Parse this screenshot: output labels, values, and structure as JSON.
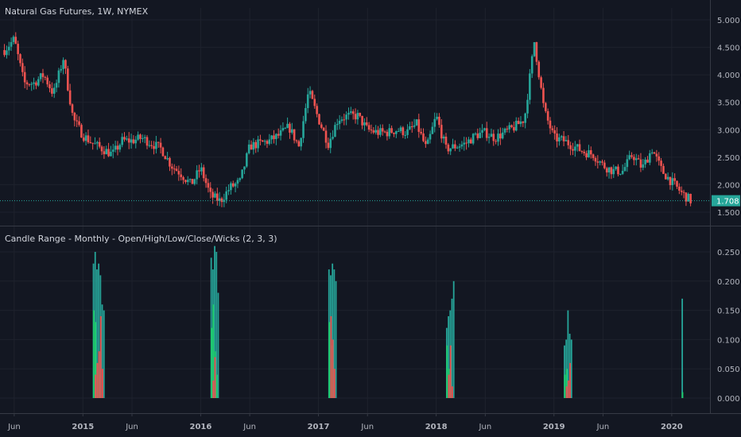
{
  "colors": {
    "background": "#131722",
    "grid": "#1e222d",
    "separator": "#363a45",
    "up": "#26a69a",
    "down": "#ef5350",
    "text": "#b2b5be",
    "last_price_line": "#26a69a",
    "osc_bright_green": "#1ecf6c",
    "osc_teal": "#26a69a",
    "osc_red": "#ef5350"
  },
  "chart_data": [
    {
      "type": "candlestick",
      "title": "Natural Gas Futures, 1W, NYMEX",
      "y_ticks": [
        "5.000",
        "4.500",
        "4.000",
        "3.500",
        "3.000",
        "2.500",
        "2.000",
        "1.500"
      ],
      "ylim": [
        1.5,
        5.0
      ],
      "last_price": "1.708",
      "x_ticks": [
        "Jun",
        "2015",
        "Jun",
        "2016",
        "Jun",
        "2017",
        "Jun",
        "2018",
        "Jun",
        "2019",
        "Jun",
        "2020"
      ],
      "x_tick_dates": [
        "2014-06",
        "2015-01",
        "2015-06",
        "2016-01",
        "2016-06",
        "2017-01",
        "2017-06",
        "2018-01",
        "2018-06",
        "2019-01",
        "2019-06",
        "2020-01"
      ],
      "x_range": [
        "2014-05",
        "2020-05"
      ],
      "close_path": [
        [
          "2014-05",
          4.45
        ],
        [
          "2014-06",
          4.65
        ],
        [
          "2014-07",
          3.85
        ],
        [
          "2014-08",
          3.85
        ],
        [
          "2014-09",
          4.0
        ],
        [
          "2014-10",
          3.65
        ],
        [
          "2014-11",
          4.3
        ],
        [
          "2014-12",
          3.2
        ],
        [
          "2015-01",
          2.9
        ],
        [
          "2015-02",
          2.75
        ],
        [
          "2015-03",
          2.65
        ],
        [
          "2015-04",
          2.55
        ],
        [
          "2015-05",
          2.8
        ],
        [
          "2015-06",
          2.8
        ],
        [
          "2015-07",
          2.85
        ],
        [
          "2015-08",
          2.75
        ],
        [
          "2015-09",
          2.65
        ],
        [
          "2015-10",
          2.35
        ],
        [
          "2015-11",
          2.2
        ],
        [
          "2015-12",
          2.0
        ],
        [
          "2016-01",
          2.3
        ],
        [
          "2016-02",
          1.8
        ],
        [
          "2016-03",
          1.7
        ],
        [
          "2016-04",
          1.95
        ],
        [
          "2016-05",
          2.05
        ],
        [
          "2016-06",
          2.7
        ],
        [
          "2016-07",
          2.75
        ],
        [
          "2016-08",
          2.8
        ],
        [
          "2016-09",
          2.9
        ],
        [
          "2016-10",
          3.05
        ],
        [
          "2016-11",
          2.7
        ],
        [
          "2016-12",
          3.7
        ],
        [
          "2017-01",
          3.2
        ],
        [
          "2017-02",
          2.75
        ],
        [
          "2017-03",
          3.2
        ],
        [
          "2017-04",
          3.25
        ],
        [
          "2017-05",
          3.25
        ],
        [
          "2017-06",
          3.0
        ],
        [
          "2017-07",
          2.95
        ],
        [
          "2017-08",
          2.95
        ],
        [
          "2017-09",
          3.0
        ],
        [
          "2017-10",
          2.95
        ],
        [
          "2017-11",
          3.1
        ],
        [
          "2017-12",
          2.65
        ],
        [
          "2018-01",
          3.25
        ],
        [
          "2018-02",
          2.65
        ],
        [
          "2018-03",
          2.7
        ],
        [
          "2018-04",
          2.75
        ],
        [
          "2018-05",
          2.9
        ],
        [
          "2018-06",
          2.95
        ],
        [
          "2018-07",
          2.85
        ],
        [
          "2018-08",
          2.95
        ],
        [
          "2018-09",
          3.05
        ],
        [
          "2018-10",
          3.2
        ],
        [
          "2018-11",
          4.6
        ],
        [
          "2018-12",
          3.35
        ],
        [
          "2019-01",
          2.85
        ],
        [
          "2019-02",
          2.8
        ],
        [
          "2019-03",
          2.7
        ],
        [
          "2019-04",
          2.6
        ],
        [
          "2019-05",
          2.55
        ],
        [
          "2019-06",
          2.35
        ],
        [
          "2019-07",
          2.25
        ],
        [
          "2019-08",
          2.25
        ],
        [
          "2019-09",
          2.55
        ],
        [
          "2019-10",
          2.3
        ],
        [
          "2019-11",
          2.65
        ],
        [
          "2019-12",
          2.25
        ],
        [
          "2020-01",
          2.05
        ],
        [
          "2020-02",
          1.85
        ],
        [
          "2020-03",
          1.7
        ]
      ]
    },
    {
      "type": "bar",
      "title": "Candle Range - Monthly - Open/High/Low/Close/Wicks (2, 3, 3)",
      "y_ticks": [
        "0.250",
        "0.200",
        "0.150",
        "0.100",
        "0.050",
        "0.000"
      ],
      "ylim": [
        0,
        0.25
      ],
      "clusters": [
        {
          "x": "2015-02",
          "teal": [
            0.23,
            0.25,
            0.22,
            0.23,
            0.21,
            0.16,
            0.15
          ],
          "green": [
            0.15,
            0.13,
            0.06,
            0.04
          ],
          "red": [
            0.04,
            0.06,
            0.08,
            0.14,
            0.05
          ]
        },
        {
          "x": "2016-02",
          "teal": [
            0.24,
            0.22,
            0.26,
            0.25,
            0.18
          ],
          "green": [
            0.12,
            0.16,
            0.08,
            0.04
          ],
          "red": [
            0.03,
            0.07
          ]
        },
        {
          "x": "2017-02",
          "teal": [
            0.22,
            0.21,
            0.23,
            0.22,
            0.2
          ],
          "green": [
            0.13,
            0.09,
            0.06
          ],
          "red": [
            0.14,
            0.1,
            0.05
          ]
        },
        {
          "x": "2018-02",
          "teal": [
            0.12,
            0.14,
            0.15,
            0.17,
            0.2
          ],
          "green": [
            0.09,
            0.05,
            0.03
          ],
          "red": [
            0.04,
            0.09,
            0.02
          ]
        },
        {
          "x": "2019-02",
          "teal": [
            0.09,
            0.1,
            0.15,
            0.11,
            0.1
          ],
          "green": [
            0.04,
            0.05
          ],
          "red": [
            0.02,
            0.03,
            0.06
          ]
        },
        {
          "x": "2020-02",
          "teal": [
            0.17
          ],
          "green": [
            0.01
          ],
          "red": []
        }
      ]
    }
  ]
}
